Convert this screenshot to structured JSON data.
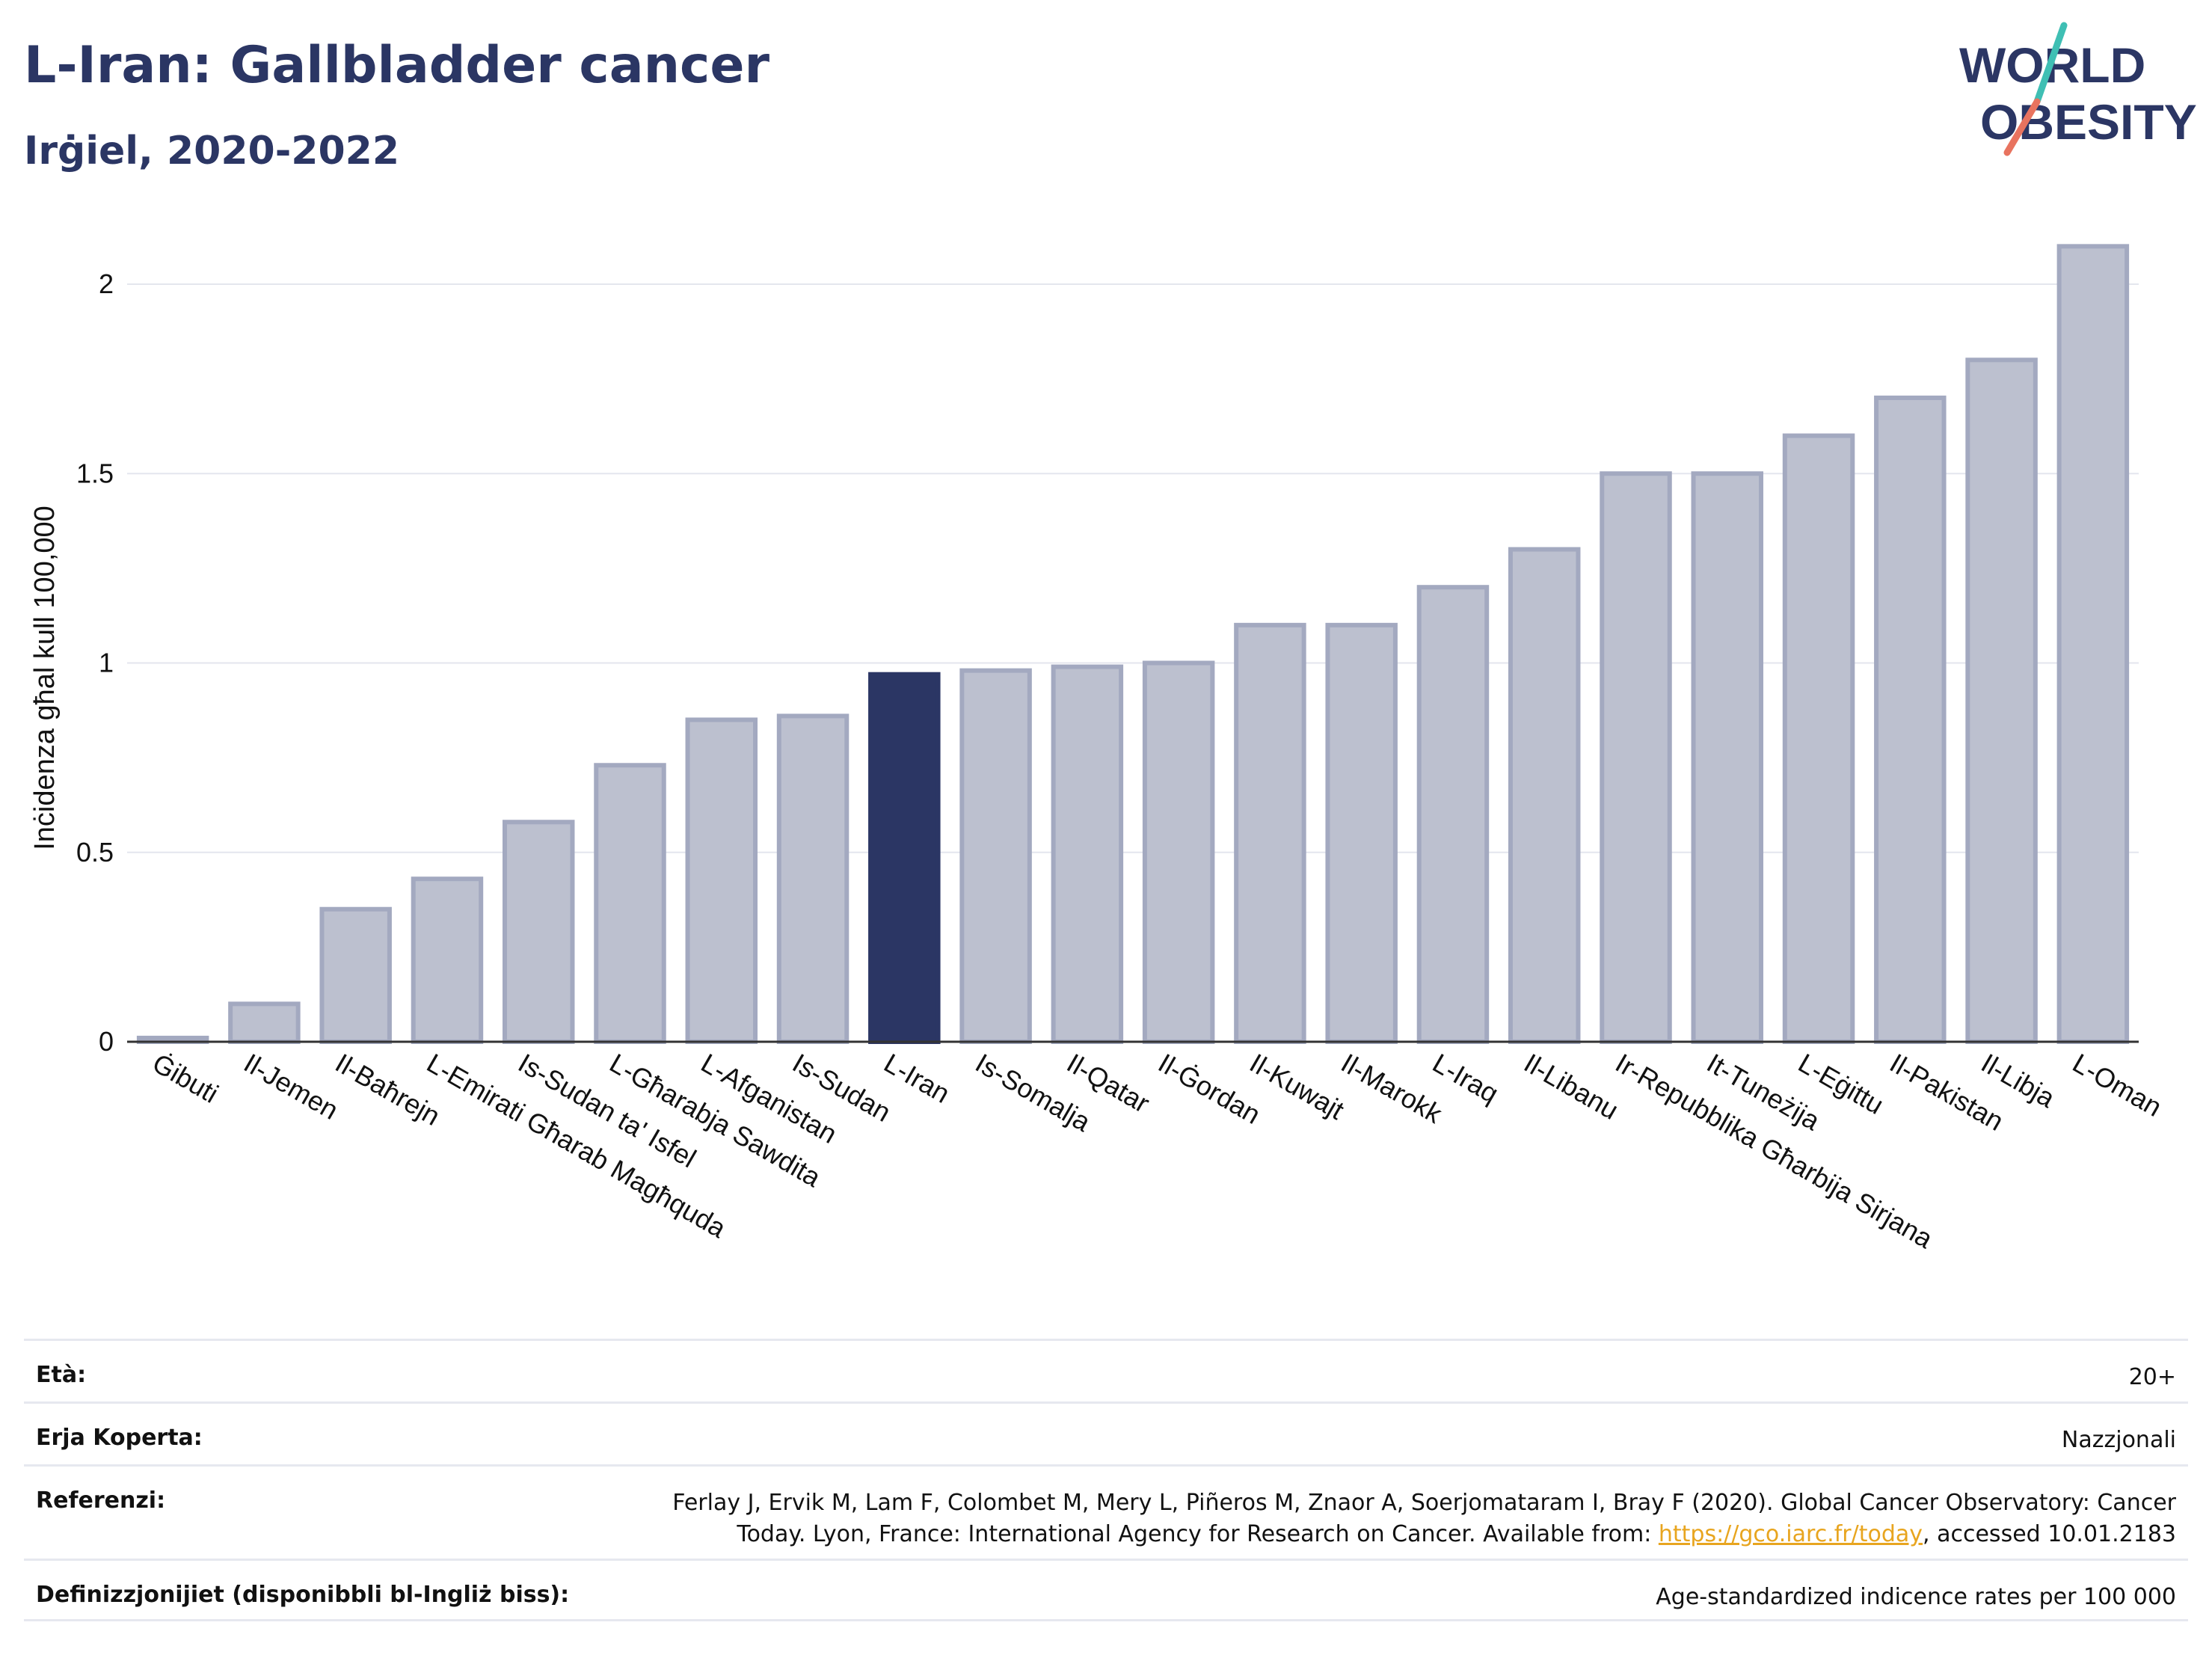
{
  "header": {
    "title": "L-Iran: Gallbladder cancer",
    "subtitle": "Irġiel, 2020-2022"
  },
  "logo": {
    "line1": "WORLD",
    "line2": "OBESITY",
    "accent_teal": "#3fbfb4",
    "accent_coral": "#e8735f",
    "text_color": "#2b3664"
  },
  "chart_data": {
    "type": "bar",
    "ylabel": "Inċidenza għal kull 100,000",
    "xlabel": "",
    "ylim": [
      0,
      2.15
    ],
    "yticks": [
      0,
      0.5,
      1,
      1.5,
      2
    ],
    "ytick_labels": [
      "0",
      "0.5",
      "1",
      "1.5",
      "2"
    ],
    "grid": true,
    "highlight": "L-Iran",
    "bar_color": "#bcc0cf",
    "bar_edge_color": "#a3a9c0",
    "highlight_color": "#2b3664",
    "categories": [
      "Ġibuti",
      "Il-Jemen",
      "Il-Baħrejn",
      "L-Emirati Għarab Magħquda",
      "Is-Sudan ta' Isfel",
      "L-Għarabja Sawdita",
      "L-Afganistan",
      "Is-Sudan",
      "L-Iran",
      "Is-Somalja",
      "Il-Qatar",
      "Il-Ġordan",
      "Il-Kuwajt",
      "Il-Marokk",
      "L-Iraq",
      "Il-Libanu",
      "Ir-Repubblika Għarbija Sirjana",
      "It-Tuneżija",
      "L-Eġittu",
      "Il-Pakistan",
      "Il-Libja",
      "L-Oman"
    ],
    "values": [
      0.01,
      0.1,
      0.35,
      0.43,
      0.58,
      0.73,
      0.85,
      0.86,
      0.97,
      0.98,
      0.99,
      1.0,
      1.1,
      1.1,
      1.2,
      1.3,
      1.5,
      1.5,
      1.6,
      1.7,
      1.8,
      2.1
    ]
  },
  "info": {
    "rows": [
      {
        "label": "Età:",
        "value": "20+"
      },
      {
        "label": "Erja Koperta:",
        "value": "Nazzjonali"
      },
      {
        "label": "Referenzi:",
        "value_pre": "Ferlay J, Ervik M, Lam F, Colombet M, Mery L, Piñeros M, Znaor A, Soerjomataram I, Bray F (2020). Global Cancer Observatory: Cancer Today. Lyon, France: International Agency for Research on Cancer. Available from: ",
        "link": "https://gco.iarc.fr/today",
        "value_post": ", accessed 10.01.2183"
      },
      {
        "label": "Definizzjonijiet (disponibbli bl-Ingliż biss):",
        "value": "Age-standardized indicence rates per 100 000"
      }
    ]
  }
}
